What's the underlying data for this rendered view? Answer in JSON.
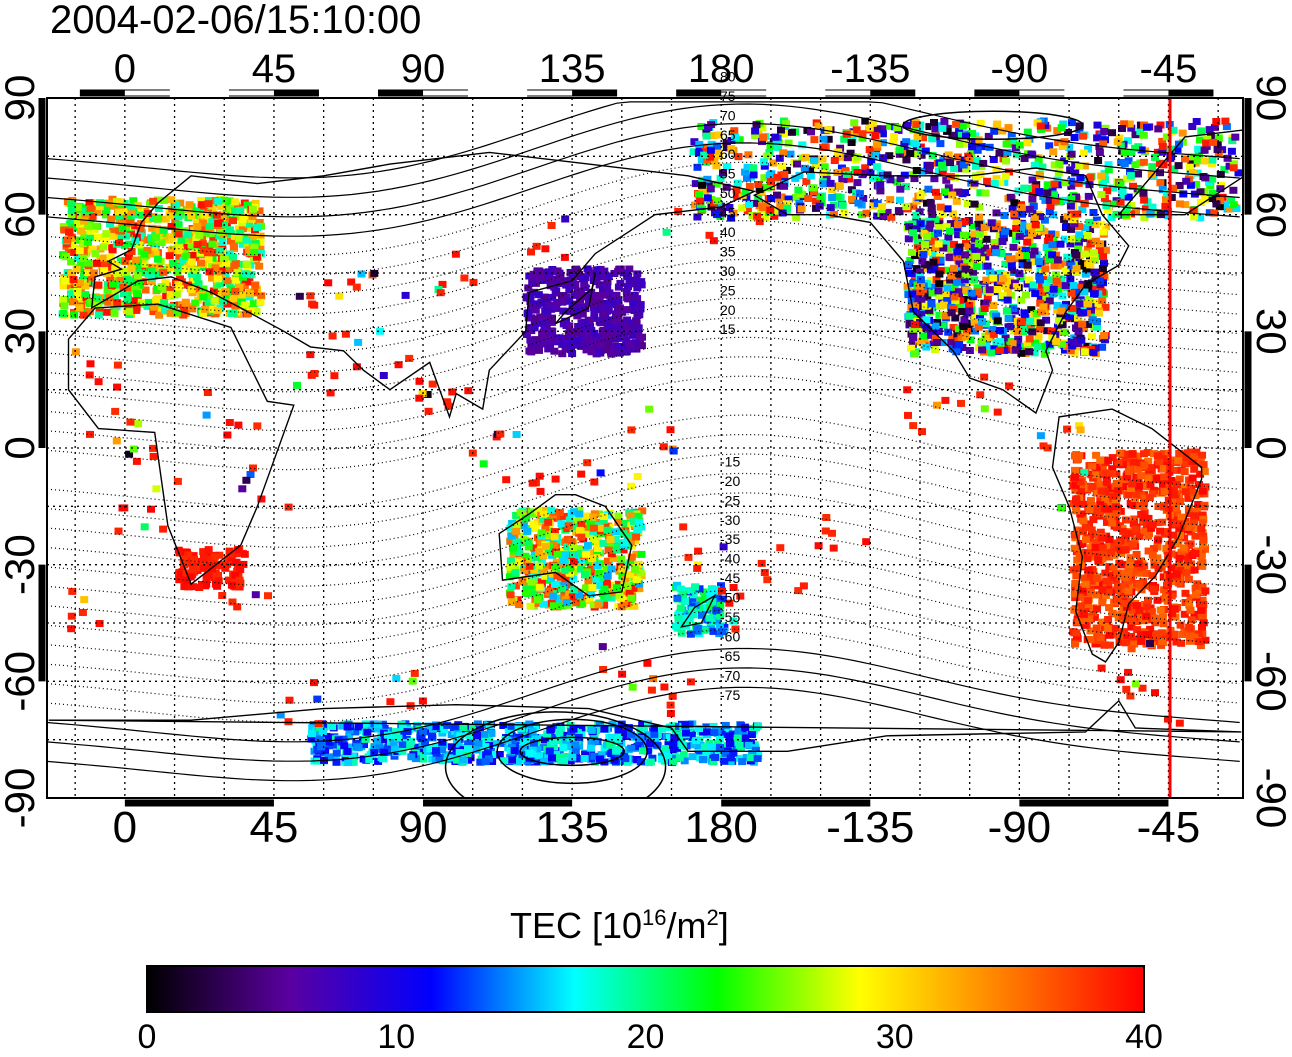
{
  "header": {
    "timestamp": "2004-02-06/15:10:00"
  },
  "map": {
    "projection": "equirectangular",
    "center_longitude": 180,
    "lon_range": [
      -23.5,
      337.5
    ],
    "lat_range": [
      -90,
      90
    ],
    "lon_ticks": [
      {
        "value": 0,
        "label": "0"
      },
      {
        "value": 45,
        "label": "45"
      },
      {
        "value": 90,
        "label": "90"
      },
      {
        "value": 135,
        "label": "135"
      },
      {
        "value": 180,
        "label": "180"
      },
      {
        "value": 225,
        "label": "-135"
      },
      {
        "value": 270,
        "label": "-90"
      },
      {
        "value": 315,
        "label": "-45"
      }
    ],
    "lat_ticks": [
      {
        "value": 90,
        "label": "90"
      },
      {
        "value": 60,
        "label": "60"
      },
      {
        "value": 30,
        "label": "30"
      },
      {
        "value": 0,
        "label": "0"
      },
      {
        "value": -30,
        "label": "-30"
      },
      {
        "value": -60,
        "label": "-60"
      },
      {
        "value": -90,
        "label": "-90"
      }
    ],
    "grid": "dotted, 15 degrees",
    "contour_labels": [
      "80",
      "75",
      "70",
      "65",
      "60",
      "55",
      "50",
      "45",
      "40",
      "35",
      "30",
      "25",
      "20",
      "15",
      "-15",
      "-20",
      "-25",
      "-30",
      "-35",
      "-40",
      "-45",
      "-50",
      "-55",
      "-60",
      "-65",
      "-70",
      "-75"
    ],
    "terminator_longitude_label": "-45",
    "terminator_color": "#ff0000"
  },
  "colorbar": {
    "title_prefix": "TEC  [10",
    "title_exp1": "16",
    "title_mid": "/m",
    "title_exp2": "2",
    "title_suffix": "]",
    "min": 0,
    "max": 40,
    "ticks": [
      "0",
      "10",
      "20",
      "30",
      "40"
    ],
    "colormap": [
      "#000000",
      "#5a00a0",
      "#0000ff",
      "#00ffff",
      "#00ff00",
      "#ffff00",
      "#ff8000",
      "#ff0000"
    ]
  },
  "tec_regions": [
    {
      "name": "europe",
      "lon": [
        -20,
        40
      ],
      "lat": [
        35,
        65
      ],
      "tec_range": [
        18,
        40
      ]
    },
    {
      "name": "japan-east-asia",
      "lon": [
        120,
        155
      ],
      "lat": [
        25,
        47
      ],
      "tec_range": [
        5,
        8
      ]
    },
    {
      "name": "north-america",
      "lon": [
        235,
        295
      ],
      "lat": [
        25,
        60
      ],
      "tec_range": [
        0,
        40
      ]
    },
    {
      "name": "south-america",
      "lon": [
        285,
        325
      ],
      "lat": [
        -50,
        0
      ],
      "tec_range": [
        35,
        40
      ]
    },
    {
      "name": "southern-africa",
      "lon": [
        15,
        35
      ],
      "lat": [
        -35,
        -25
      ],
      "tec_range": [
        38,
        40
      ]
    },
    {
      "name": "australia",
      "lon": [
        115,
        155
      ],
      "lat": [
        -40,
        -15
      ],
      "tec_range": [
        15,
        40
      ]
    },
    {
      "name": "new-zealand",
      "lon": [
        165,
        180
      ],
      "lat": [
        -47,
        -34
      ],
      "tec_range": [
        12,
        22
      ]
    },
    {
      "name": "antarctic-coast",
      "lon": [
        55,
        190
      ],
      "lat": [
        -80,
        -70
      ],
      "tec_range": [
        10,
        20
      ]
    },
    {
      "name": "arctic-north",
      "lon": [
        170,
        335
      ],
      "lat": [
        60,
        85
      ],
      "tec_range": [
        0,
        40
      ]
    }
  ]
}
